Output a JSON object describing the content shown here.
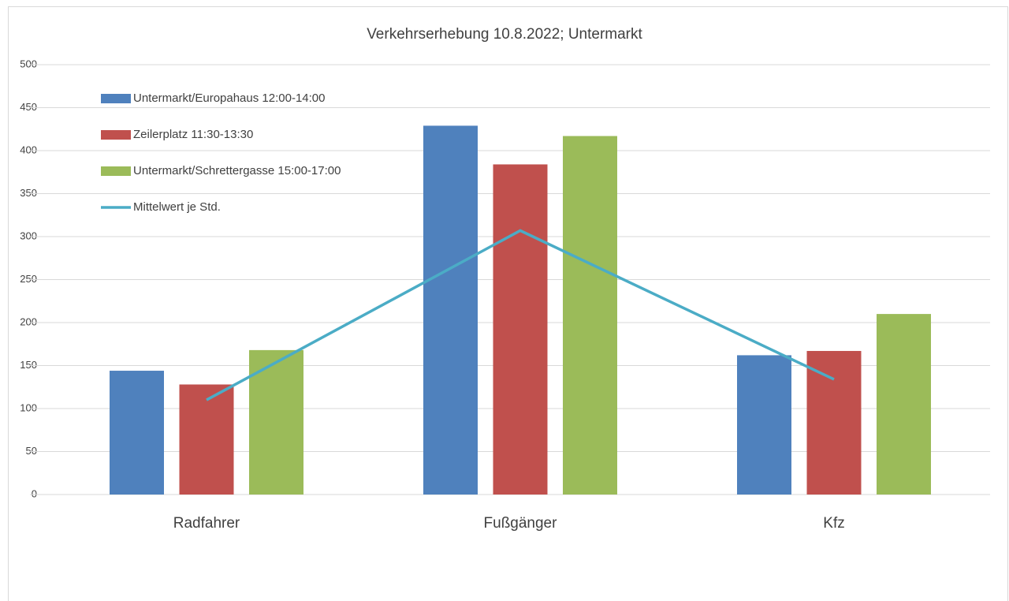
{
  "chart_data": {
    "type": "bar",
    "title": "Verkehrserhebung  10.8.2022; Untermarkt",
    "categories": [
      "Radfahrer",
      "Fußgänger",
      "Kfz"
    ],
    "series": [
      {
        "name": "Untermarkt/Europahaus 12:00-14:00",
        "color": "#4f81bd",
        "values": [
          144,
          429,
          162
        ]
      },
      {
        "name": "Zeilerplatz 11:30-13:30",
        "color": "#c0504d",
        "values": [
          128,
          384,
          167
        ]
      },
      {
        "name": "Untermarkt/Schrettergasse 15:00-17:00",
        "color": "#9bbb59",
        "values": [
          168,
          417,
          210
        ]
      },
      {
        "name": "Mittelwert je Std.",
        "color": "#4bacc6",
        "type": "line",
        "values": [
          110,
          307,
          134
        ]
      }
    ],
    "ylim": [
      0,
      500
    ],
    "yticks": [
      0,
      50,
      100,
      150,
      200,
      250,
      300,
      350,
      400,
      450,
      500
    ],
    "grid": true,
    "legend": "top-left"
  }
}
